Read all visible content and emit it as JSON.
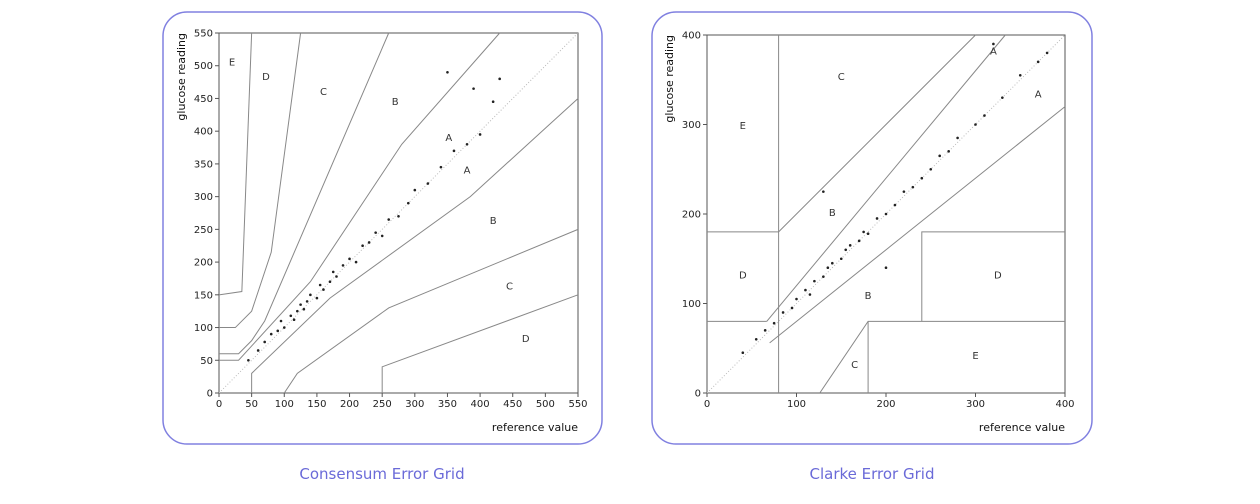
{
  "chart_data": [
    {
      "type": "scatter",
      "title": "Consensum Error Grid",
      "xlabel": "reference value",
      "ylabel": "glucose reading",
      "xlim": [
        0,
        550
      ],
      "ylim": [
        0,
        550
      ],
      "xticks": [
        0,
        50,
        100,
        150,
        200,
        250,
        300,
        350,
        400,
        450,
        500,
        550
      ],
      "yticks": [
        0,
        50,
        100,
        150,
        200,
        250,
        300,
        350,
        400,
        450,
        500,
        550
      ],
      "x": [
        45,
        60,
        70,
        80,
        90,
        95,
        100,
        110,
        115,
        120,
        125,
        130,
        135,
        140,
        150,
        155,
        160,
        170,
        175,
        180,
        190,
        200,
        210,
        220,
        230,
        240,
        250,
        260,
        275,
        290,
        300,
        320,
        340,
        360,
        380,
        400,
        350,
        390,
        430,
        420
      ],
      "y": [
        50,
        65,
        78,
        90,
        95,
        110,
        100,
        118,
        112,
        125,
        135,
        128,
        140,
        150,
        145,
        165,
        158,
        170,
        185,
        178,
        195,
        205,
        200,
        225,
        230,
        245,
        240,
        265,
        270,
        290,
        310,
        320,
        345,
        370,
        380,
        395,
        490,
        465,
        480,
        445
      ],
      "color": "#222222",
      "zone_lines": [
        {
          "x": [
            0,
            35,
            50
          ],
          "y": [
            150,
            155,
            550
          ]
        },
        {
          "x": [
            0,
            25,
            50,
            80,
            125
          ],
          "y": [
            100,
            100,
            125,
            215,
            550
          ]
        },
        {
          "x": [
            0,
            30,
            50,
            70,
            260
          ],
          "y": [
            60,
            60,
            80,
            110,
            550
          ]
        },
        {
          "x": [
            0,
            30,
            140,
            280,
            430
          ],
          "y": [
            50,
            50,
            170,
            380,
            550
          ]
        },
        {
          "x": [
            50,
            50,
            170,
            385,
            550
          ],
          "y": [
            0,
            30,
            145,
            300,
            450
          ]
        },
        {
          "x": [
            100,
            120,
            260,
            550
          ],
          "y": [
            0,
            30,
            130,
            250
          ]
        },
        {
          "x": [
            250,
            250,
            550
          ],
          "y": [
            0,
            40,
            150
          ]
        }
      ],
      "zone_labels": [
        "E",
        "D",
        "C",
        "B",
        "A",
        "A",
        "B",
        "C",
        "D"
      ]
    },
    {
      "type": "scatter",
      "title": "Clarke Error Grid",
      "xlabel": "reference value",
      "ylabel": "glucose reading",
      "xlim": [
        0,
        400
      ],
      "ylim": [
        0,
        400
      ],
      "xticks": [
        0,
        100,
        200,
        300,
        400
      ],
      "yticks": [
        0,
        100,
        200,
        300,
        400
      ],
      "x": [
        40,
        55,
        65,
        75,
        85,
        95,
        100,
        110,
        115,
        120,
        130,
        135,
        140,
        150,
        155,
        160,
        170,
        175,
        180,
        190,
        200,
        210,
        220,
        230,
        240,
        250,
        260,
        270,
        280,
        300,
        310,
        330,
        350,
        370,
        380,
        320,
        130,
        200
      ],
      "y": [
        45,
        60,
        70,
        78,
        90,
        95,
        105,
        115,
        110,
        125,
        130,
        140,
        145,
        150,
        160,
        165,
        170,
        180,
        178,
        195,
        200,
        210,
        225,
        230,
        240,
        250,
        265,
        270,
        285,
        300,
        310,
        330,
        355,
        370,
        380,
        390,
        225,
        140
      ],
      "color": "#222222",
      "zone_lines": [
        {
          "x": [
            0,
            66.7
          ],
          "y": [
            80,
            80
          ]
        },
        {
          "x": [
            66.7,
            333.3
          ],
          "y": [
            80,
            400
          ]
        },
        {
          "x": [
            70,
            400
          ],
          "y": [
            56,
            320
          ]
        },
        {
          "x": [
            80,
            80
          ],
          "y": [
            0,
            400
          ]
        },
        {
          "x": [
            0,
            80,
            300
          ],
          "y": [
            180,
            180,
            400
          ]
        },
        {
          "x": [
            126,
            180,
            400
          ],
          "y": [
            0,
            80,
            80
          ]
        },
        {
          "x": [
            180,
            180
          ],
          "y": [
            0,
            80
          ]
        },
        {
          "x": [
            240,
            240,
            400
          ],
          "y": [
            80,
            180,
            180
          ]
        }
      ],
      "zone_labels": [
        "A",
        "A",
        "C",
        "E",
        "B",
        "D",
        "B",
        "D",
        "C",
        "E"
      ]
    }
  ]
}
